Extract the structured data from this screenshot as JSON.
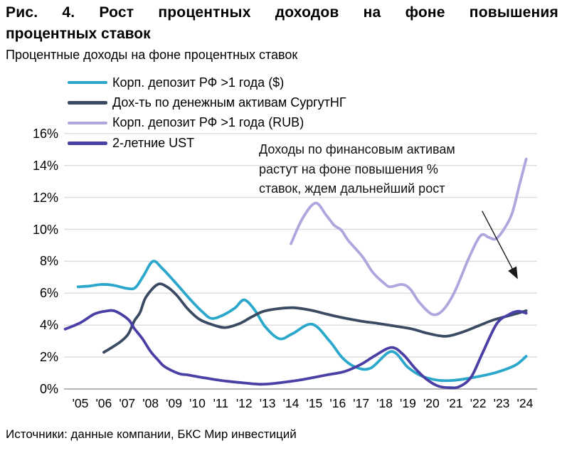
{
  "figure": {
    "title_lines": [
      "Рис. 4. Рост процентных доходов на фоне повышения",
      "процентных ставок"
    ],
    "subtitle": "Процентные доходы на фоне процентных ставок",
    "source": "Источники: данные компании, БКС Мир инвестиций"
  },
  "annotation": {
    "lines": [
      "Доходы по финансовым активам",
      "растут на фоне повышения %",
      "ставок, ждем дальнейший рост"
    ],
    "arrow": {
      "from": [
        2022.17,
        11.15
      ],
      "to": [
        2023.67,
        6.95
      ]
    }
  },
  "chart_data": {
    "type": "line",
    "title": "Процентные доходы на фоне процентных ставок",
    "xlabel": "",
    "ylabel": "",
    "ylim": [
      0,
      16
    ],
    "ytick_step": 2,
    "ytick_suffix": "%",
    "grid": "horizontal",
    "legend_position": "top-left",
    "colors": {
      "grid": "#dcdcdc",
      "axis_zero": "#b5b5b5",
      "text": "#000000",
      "arrow": "#1a1a1a"
    },
    "xticks": [
      "'05",
      "'06",
      "'07",
      "'08",
      "'09",
      "'10",
      "'11",
      "'12",
      "'13",
      "'14",
      "'15",
      "'16",
      "'17",
      "'18",
      "'19",
      "'20",
      "'21",
      "'22",
      "'23",
      "'24"
    ],
    "x_start_year": 2005,
    "series": [
      {
        "name": "Корп. депозит РФ >1 года ($)",
        "color": "#2AA7CA",
        "points": [
          [
            2004.9,
            6.4
          ],
          [
            2005.4,
            6.45
          ],
          [
            2005.9,
            6.55
          ],
          [
            2006.4,
            6.5
          ],
          [
            2007.0,
            6.3
          ],
          [
            2007.35,
            6.35
          ],
          [
            2007.7,
            7.1
          ],
          [
            2008.1,
            8.0
          ],
          [
            2008.5,
            7.55
          ],
          [
            2009.1,
            6.6
          ],
          [
            2009.7,
            5.6
          ],
          [
            2010.2,
            4.85
          ],
          [
            2010.6,
            4.42
          ],
          [
            2011.1,
            4.63
          ],
          [
            2011.6,
            5.07
          ],
          [
            2012.0,
            5.58
          ],
          [
            2012.45,
            4.95
          ],
          [
            2012.9,
            3.9
          ],
          [
            2013.5,
            3.15
          ],
          [
            2014.05,
            3.45
          ],
          [
            2014.9,
            4.06
          ],
          [
            2015.65,
            3.0
          ],
          [
            2016.2,
            1.95
          ],
          [
            2016.75,
            1.38
          ],
          [
            2017.4,
            1.3
          ],
          [
            2018.3,
            2.35
          ],
          [
            2019.0,
            1.35
          ],
          [
            2019.6,
            0.8
          ],
          [
            2020.3,
            0.55
          ],
          [
            2021.0,
            0.55
          ],
          [
            2022.0,
            0.78
          ],
          [
            2022.8,
            1.05
          ],
          [
            2023.6,
            1.5
          ],
          [
            2024.05,
            2.05
          ]
        ]
      },
      {
        "name": "Дох-ть по денежным активам СургутНГ",
        "color": "#3B4A63",
        "points": [
          [
            2006.0,
            2.3
          ],
          [
            2006.4,
            2.65
          ],
          [
            2006.75,
            3.0
          ],
          [
            2007.05,
            3.45
          ],
          [
            2007.3,
            4.25
          ],
          [
            2007.55,
            4.8
          ],
          [
            2007.8,
            5.75
          ],
          [
            2008.3,
            6.55
          ],
          [
            2008.7,
            6.4
          ],
          [
            2009.1,
            5.9
          ],
          [
            2009.6,
            5.0
          ],
          [
            2010.1,
            4.35
          ],
          [
            2010.7,
            4.0
          ],
          [
            2011.2,
            3.85
          ],
          [
            2011.8,
            4.1
          ],
          [
            2012.3,
            4.5
          ],
          [
            2012.8,
            4.85
          ],
          [
            2013.4,
            5.02
          ],
          [
            2014.1,
            5.09
          ],
          [
            2014.8,
            4.95
          ],
          [
            2015.5,
            4.7
          ],
          [
            2016.15,
            4.48
          ],
          [
            2017.0,
            4.25
          ],
          [
            2017.7,
            4.11
          ],
          [
            2018.4,
            3.95
          ],
          [
            2019.2,
            3.75
          ],
          [
            2019.8,
            3.5
          ],
          [
            2020.6,
            3.3
          ],
          [
            2021.3,
            3.55
          ],
          [
            2022.0,
            3.95
          ],
          [
            2022.6,
            4.3
          ],
          [
            2023.2,
            4.55
          ],
          [
            2023.7,
            4.75
          ],
          [
            2024.05,
            4.9
          ]
        ]
      },
      {
        "name": "Корп. депозит РФ >1 года (RUB)",
        "color": "#ADA7DD",
        "points": [
          [
            2014.0,
            9.1
          ],
          [
            2014.5,
            10.7
          ],
          [
            2015.05,
            11.65
          ],
          [
            2015.5,
            10.9
          ],
          [
            2015.85,
            10.25
          ],
          [
            2016.15,
            9.95
          ],
          [
            2016.45,
            9.3
          ],
          [
            2017.05,
            8.3
          ],
          [
            2017.5,
            7.3
          ],
          [
            2018.0,
            6.6
          ],
          [
            2018.25,
            6.4
          ],
          [
            2018.75,
            6.55
          ],
          [
            2019.1,
            6.25
          ],
          [
            2019.5,
            5.4
          ],
          [
            2020.05,
            4.67
          ],
          [
            2020.5,
            4.95
          ],
          [
            2021.0,
            6.1
          ],
          [
            2021.6,
            8.2
          ],
          [
            2022.1,
            9.6
          ],
          [
            2022.45,
            9.5
          ],
          [
            2022.75,
            9.4
          ],
          [
            2023.1,
            10.0
          ],
          [
            2023.45,
            11.0
          ],
          [
            2023.75,
            12.7
          ],
          [
            2024.05,
            14.4
          ]
        ]
      },
      {
        "name": "2-летние UST",
        "color": "#4A3FA5",
        "points": [
          [
            2004.35,
            3.75
          ],
          [
            2005.0,
            4.15
          ],
          [
            2005.6,
            4.7
          ],
          [
            2006.1,
            4.88
          ],
          [
            2006.5,
            4.87
          ],
          [
            2007.05,
            4.35
          ],
          [
            2007.3,
            3.8
          ],
          [
            2007.65,
            3.15
          ],
          [
            2008.0,
            2.35
          ],
          [
            2008.3,
            1.85
          ],
          [
            2008.6,
            1.4
          ],
          [
            2009.2,
            0.97
          ],
          [
            2009.6,
            0.88
          ],
          [
            2010.1,
            0.75
          ],
          [
            2010.7,
            0.6
          ],
          [
            2011.3,
            0.48
          ],
          [
            2012.0,
            0.38
          ],
          [
            2012.7,
            0.3
          ],
          [
            2013.3,
            0.35
          ],
          [
            2014.0,
            0.48
          ],
          [
            2014.6,
            0.62
          ],
          [
            2015.6,
            0.9
          ],
          [
            2016.3,
            1.1
          ],
          [
            2017.0,
            1.55
          ],
          [
            2017.6,
            2.1
          ],
          [
            2018.3,
            2.6
          ],
          [
            2018.8,
            2.15
          ],
          [
            2019.3,
            1.3
          ],
          [
            2019.8,
            0.6
          ],
          [
            2020.3,
            0.18
          ],
          [
            2020.8,
            0.08
          ],
          [
            2021.2,
            0.15
          ],
          [
            2021.7,
            0.75
          ],
          [
            2022.2,
            2.3
          ],
          [
            2022.8,
            4.1
          ],
          [
            2023.3,
            4.65
          ],
          [
            2023.7,
            4.87
          ],
          [
            2024.05,
            4.75
          ]
        ]
      }
    ]
  }
}
